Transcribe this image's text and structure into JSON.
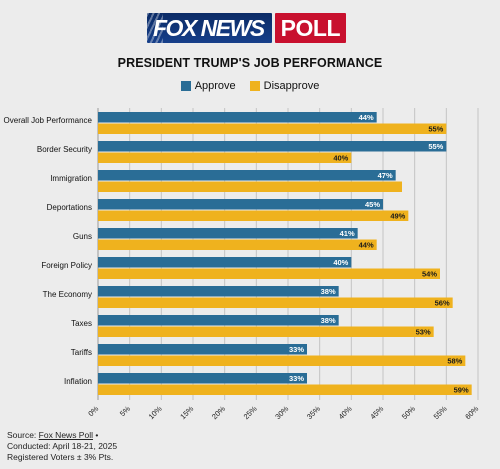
{
  "logo": {
    "fox_news_text": "FOX NEWS",
    "poll_text": "POLL"
  },
  "colors": {
    "approve": "#2a6d96",
    "disapprove": "#efb21e",
    "background": "#ececec",
    "grid": "#c4c4c4"
  },
  "chart_data": {
    "type": "bar",
    "orientation": "horizontal",
    "title": "PRESIDENT TRUMP'S JOB PERFORMANCE",
    "categories": [
      "Overall Job Performance",
      "Border Security",
      "Immigration",
      "Deportations",
      "Guns",
      "Foreign Policy",
      "The Economy",
      "Taxes",
      "Tariffs",
      "Inflation"
    ],
    "series": [
      {
        "name": "Approve",
        "values": [
          44,
          55,
          47,
          45,
          41,
          40,
          38,
          38,
          33,
          33
        ],
        "labels": [
          "44%",
          "55%",
          "47%",
          "45%",
          "41%",
          "40%",
          "38%",
          "38%",
          "33%",
          "33%"
        ]
      },
      {
        "name": "Disapprove",
        "values": [
          55,
          40,
          48,
          49,
          44,
          54,
          56,
          53,
          58,
          59
        ],
        "labels": [
          "55%",
          "40%",
          "",
          "49%",
          "44%",
          "54%",
          "56%",
          "53%",
          "58%",
          "59%"
        ]
      }
    ],
    "xlim": [
      0,
      60
    ],
    "xticks": [
      0,
      5,
      10,
      15,
      20,
      25,
      30,
      35,
      40,
      45,
      50,
      55,
      60
    ],
    "xtick_labels": [
      "0%",
      "5%",
      "10%",
      "15%",
      "20%",
      "25%",
      "30%",
      "35%",
      "40%",
      "45%",
      "50%",
      "55%",
      "60%"
    ],
    "grid": true,
    "legend_position": "top-center"
  },
  "source": {
    "prefix": "Source: ",
    "link": "Fox News Poll",
    "suffix": " •",
    "conducted": "Conducted: April 18-21, 2025",
    "voters": "Registered Voters ± 3% Pts."
  }
}
